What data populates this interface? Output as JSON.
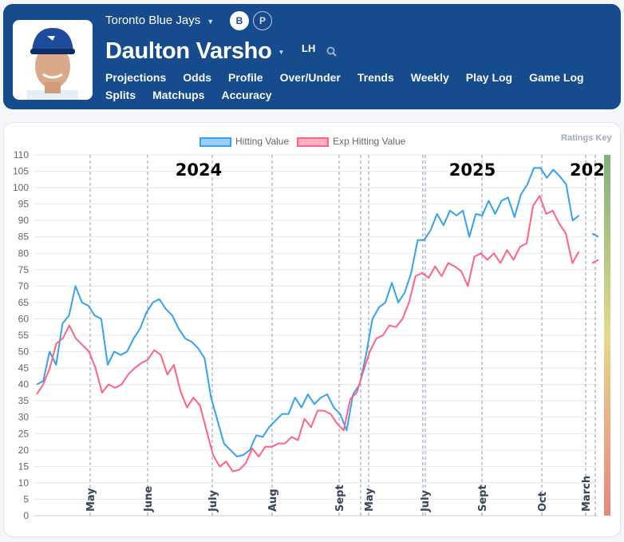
{
  "header": {
    "team": "Toronto Blue Jays",
    "toggle": [
      "B",
      "P"
    ],
    "player_name": "Daulton Varsho",
    "handedness": "LH",
    "nav": [
      "Projections",
      "Odds",
      "Profile",
      "Over/Under",
      "Trends",
      "Weekly",
      "Play Log",
      "Game Log",
      "Splits",
      "Matchups",
      "Accuracy"
    ],
    "active_nav": "Trends"
  },
  "ratings_key": "Ratings Key",
  "chart_data": {
    "type": "line",
    "ylim": [
      0,
      110
    ],
    "yticks": [
      0,
      5,
      10,
      15,
      20,
      25,
      30,
      35,
      40,
      45,
      50,
      55,
      60,
      65,
      70,
      75,
      80,
      85,
      90,
      95,
      100,
      105,
      110
    ],
    "grid": true,
    "legend": "top",
    "year_labels": [
      "2024",
      "2025",
      "202"
    ],
    "month_ticks": [
      "May",
      "June",
      "July",
      "Aug",
      "Sept",
      "May",
      "July",
      "Sept",
      "Oct",
      "March"
    ],
    "series": [
      {
        "name": "Hitting Value",
        "color": "#36a2eb",
        "values": [
          40,
          41,
          50,
          46,
          58.6,
          61,
          70,
          65,
          64,
          61,
          60,
          46,
          50,
          49,
          50,
          54,
          57,
          62,
          65,
          66,
          63,
          61,
          57,
          54,
          53,
          51,
          48,
          36,
          29,
          22,
          20,
          18,
          18.5,
          20,
          24.5,
          24,
          27,
          29,
          31,
          31,
          36,
          33,
          37,
          34,
          36,
          37,
          33,
          31,
          26,
          37,
          40,
          49,
          60,
          63.5,
          65,
          71,
          65,
          68,
          74,
          84,
          84,
          87,
          92,
          88.5,
          93,
          91.5,
          93,
          85,
          92,
          91.5,
          96,
          92,
          96,
          97,
          91,
          98,
          101,
          106,
          106,
          103,
          105.5,
          103.5,
          101,
          90,
          91.5,
          null,
          86,
          85
        ]
      },
      {
        "name": "Exp Hitting Value",
        "color": "#ff6384",
        "values": [
          37,
          40,
          45,
          52.5,
          54,
          58,
          54,
          52,
          50,
          45,
          37.5,
          40,
          39,
          40,
          43,
          45,
          46.5,
          47.5,
          50.5,
          49,
          43,
          46,
          38,
          33,
          36,
          33.5,
          26,
          18.5,
          15,
          16.5,
          13.5,
          14,
          16,
          20.5,
          18,
          21,
          21,
          22,
          22,
          24,
          23,
          29.5,
          27,
          32,
          32,
          31,
          28,
          26,
          35.5,
          37.5,
          44,
          50,
          54,
          55,
          58,
          57.5,
          60,
          65,
          73,
          74,
          72.5,
          76,
          73,
          77,
          76,
          74.5,
          70,
          79,
          80,
          78,
          80,
          77,
          81,
          78,
          82,
          83,
          94.5,
          97.5,
          92,
          93,
          89,
          86,
          77,
          80.5,
          null,
          77,
          78
        ]
      }
    ]
  }
}
